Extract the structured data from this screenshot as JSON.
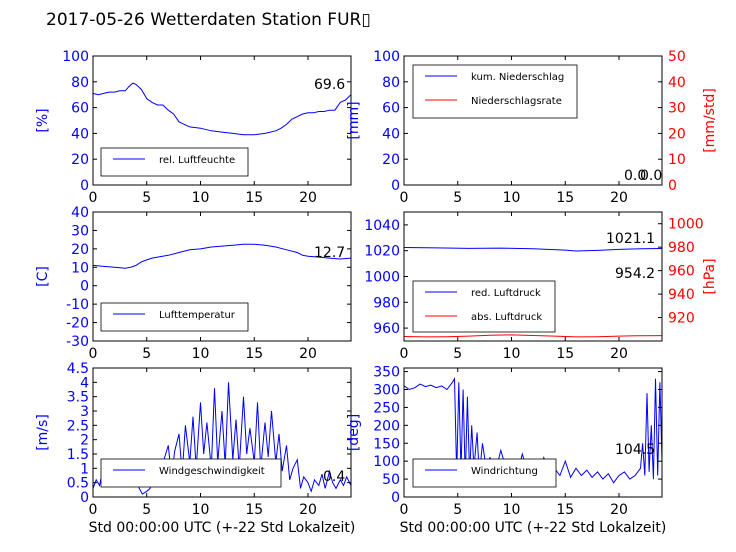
{
  "page": {
    "title": "2017-05-26 Wetterdaten Station FUR▯"
  },
  "colors": {
    "blue": "#0000ff",
    "red": "#ff0000",
    "axis": "#000000"
  },
  "chart_data": [
    {
      "type": "line",
      "id": "p1",
      "ylabel": "[%]",
      "xlim": [
        0,
        24
      ],
      "ylim": [
        0,
        100
      ],
      "xticks": [
        0,
        5,
        10,
        15,
        20
      ],
      "yticks": [
        0,
        20,
        40,
        60,
        80,
        100
      ],
      "annotation": "69.6",
      "legend": {
        "position": "lower-left",
        "entries": [
          "rel. Luftfeuchte"
        ]
      },
      "series": [
        {
          "name": "rel. Luftfeuchte",
          "color": "#0000ff",
          "x": [
            0,
            0.5,
            1,
            1.5,
            2,
            2.5,
            3,
            3.3,
            3.7,
            4,
            4.5,
            5,
            5.5,
            6,
            6.5,
            7,
            7.5,
            8,
            8.5,
            9,
            10,
            11,
            12,
            13,
            14,
            15,
            16,
            17,
            17.5,
            18,
            18.5,
            19,
            19.5,
            20,
            20.5,
            21,
            21.5,
            22,
            22.5,
            23,
            23.5,
            24
          ],
          "y": [
            71,
            70,
            71,
            72,
            72,
            73,
            73,
            76,
            79,
            78,
            74,
            67,
            64,
            62,
            62,
            58,
            55,
            49,
            47,
            45,
            44,
            42,
            41,
            40,
            39,
            39,
            40,
            42,
            44,
            47,
            51,
            53,
            55,
            56,
            56,
            57,
            57,
            58,
            58,
            64,
            66,
            70
          ]
        }
      ]
    },
    {
      "type": "line",
      "id": "p2",
      "ylabel": "[mm]",
      "ylabel2": "[mm/std]",
      "xlim": [
        0,
        24
      ],
      "ylim": [
        0,
        100
      ],
      "ylim2": [
        0,
        50
      ],
      "xticks": [
        0,
        5,
        10,
        15,
        20
      ],
      "yticks": [
        0,
        20,
        40,
        60,
        80,
        100
      ],
      "yticks2": [
        0,
        10,
        20,
        30,
        40,
        50
      ],
      "annotation": "0.0",
      "annotation2": "0.0",
      "legend": {
        "position": "upper-left",
        "entries": [
          "kum. Niederschlag",
          "Niederschlagsrate"
        ]
      },
      "series": [
        {
          "name": "kum. Niederschlag",
          "color": "#0000ff",
          "x": [
            0,
            24
          ],
          "y": [
            0,
            0
          ]
        },
        {
          "name": "Niederschlagsrate",
          "color": "#ff0000",
          "x": [
            0,
            24
          ],
          "y": [
            0,
            0
          ]
        }
      ]
    },
    {
      "type": "line",
      "id": "p3",
      "ylabel": "[C]",
      "xlim": [
        0,
        24
      ],
      "ylim": [
        -30,
        40
      ],
      "xticks": [
        0,
        5,
        10,
        15,
        20
      ],
      "yticks": [
        -30,
        -20,
        -10,
        0,
        10,
        20,
        30,
        40
      ],
      "annotation": "12.7",
      "legend": {
        "position": "lower-left",
        "entries": [
          "Lufttemperatur"
        ]
      },
      "series": [
        {
          "name": "Lufttemperatur",
          "color": "#0000ff",
          "x": [
            0,
            1,
            2,
            3,
            3.5,
            4,
            4.5,
            5,
            5.5,
            6,
            7,
            8,
            9,
            10,
            11,
            12,
            13,
            14,
            15,
            16,
            17,
            18,
            19,
            19.5,
            20,
            21,
            22,
            23,
            24
          ],
          "y": [
            11,
            10.5,
            10,
            9.5,
            10,
            11,
            13,
            14,
            15,
            15.5,
            16.5,
            18,
            19.5,
            20,
            21,
            21.5,
            22,
            22.5,
            22.5,
            22,
            21,
            19.5,
            18,
            16.5,
            16,
            15.5,
            15,
            14.5,
            15
          ]
        }
      ]
    },
    {
      "type": "line",
      "id": "p4",
      "ylabel2": "[hPa]",
      "xlim": [
        0,
        24
      ],
      "ylim": [
        950,
        1050
      ],
      "ylim2": [
        900,
        1010
      ],
      "xticks": [
        0,
        5,
        10,
        15,
        20
      ],
      "yticks": [
        960,
        980,
        1000,
        1020,
        1040
      ],
      "yticks2": [
        920,
        940,
        960,
        980,
        1000
      ],
      "annotation": "1021.1",
      "annotation2": "954.2",
      "legend": {
        "position": "lower-left",
        "entries": [
          "red. Luftdruck",
          "abs. Luftdruck"
        ]
      },
      "series": [
        {
          "name": "red. Luftdruck",
          "color": "#0000ff",
          "x": [
            0,
            3,
            6,
            9,
            12,
            15,
            16,
            18,
            20,
            22,
            24
          ],
          "y": [
            1022.5,
            1022.2,
            1021.8,
            1022,
            1021.5,
            1020.5,
            1019.8,
            1020.2,
            1021,
            1021.5,
            1021.7
          ]
        },
        {
          "name": "abs. Luftdruck",
          "color": "#ff0000",
          "x": [
            0,
            2,
            4,
            6,
            8,
            10,
            12,
            14,
            16,
            18,
            20,
            22,
            24
          ],
          "y": [
            953.5,
            953.2,
            953.3,
            953.8,
            954.5,
            954.7,
            954.3,
            953.8,
            953.2,
            953.3,
            953.8,
            954.1,
            954.2
          ]
        }
      ]
    },
    {
      "type": "line",
      "id": "p5",
      "ylabel": "[m/s]",
      "xlabel": "Std 00:00:00 UTC (+-22 Std Lokalzeit)",
      "xlim": [
        0,
        24
      ],
      "ylim": [
        0,
        4.5
      ],
      "xticks": [
        0,
        5,
        10,
        15,
        20
      ],
      "yticks": [
        0.0,
        0.5,
        1.0,
        1.5,
        2.0,
        2.5,
        3.0,
        3.5,
        4.0,
        4.5
      ],
      "annotation": "0.4",
      "legend": {
        "position": "lower-left",
        "entries": [
          "Windgeschwindigkeit"
        ]
      },
      "series": [
        {
          "name": "Windgeschwindigkeit",
          "color": "#0000ff",
          "x": [
            0,
            0.3,
            0.6,
            1,
            1.3,
            1.6,
            2,
            2.3,
            2.6,
            3,
            3.3,
            3.6,
            4,
            4.3,
            4.6,
            5,
            5.3,
            5.6,
            6,
            6.3,
            6.6,
            7,
            7.3,
            7.6,
            8,
            8.3,
            8.6,
            9,
            9.3,
            9.6,
            10,
            10.3,
            10.6,
            11,
            11.3,
            11.6,
            12,
            12.3,
            12.6,
            13,
            13.3,
            13.6,
            14,
            14.3,
            14.6,
            15,
            15.3,
            15.6,
            16,
            16.3,
            16.6,
            17,
            17.3,
            17.6,
            18,
            18.3,
            18.6,
            19,
            19.3,
            19.6,
            20,
            20.3,
            20.6,
            21,
            21.3,
            21.6,
            22,
            22.3,
            22.6,
            23,
            23.3,
            23.6,
            24
          ],
          "y": [
            0.3,
            0.6,
            0.4,
            1.1,
            1.0,
            1.2,
            1.1,
            1.2,
            1.0,
            1.1,
            1.2,
            1.0,
            0.9,
            0.3,
            0.1,
            0.2,
            0.3,
            0.6,
            1.1,
            0.5,
            1.3,
            1.8,
            0.7,
            1.6,
            2.2,
            0.8,
            2.5,
            1.2,
            2.8,
            1.0,
            3.3,
            1.5,
            2.6,
            1.0,
            3.8,
            1.2,
            3.0,
            1.1,
            4.0,
            1.3,
            2.7,
            1.0,
            3.5,
            1.5,
            2.4,
            1.2,
            3.3,
            1.0,
            2.6,
            1.4,
            3.0,
            1.2,
            2.2,
            0.9,
            1.8,
            0.6,
            1.0,
            1.3,
            0.3,
            0.7,
            0.5,
            0.2,
            0.6,
            0.4,
            0.8,
            0.3,
            0.9,
            0.5,
            0.3,
            0.6,
            0.4,
            0.7,
            0.4
          ]
        }
      ]
    },
    {
      "type": "line",
      "id": "p6",
      "ylabel": "[deg]",
      "xlabel": "Std 00:00:00 UTC (+-22 Std Lokalzeit)",
      "xlim": [
        0,
        24
      ],
      "ylim": [
        0,
        360
      ],
      "xticks": [
        0,
        5,
        10,
        15,
        20
      ],
      "yticks": [
        0,
        50,
        100,
        150,
        200,
        250,
        300,
        350
      ],
      "annotation": "104.5",
      "legend": {
        "position": "lower-left",
        "entries": [
          "Windrichtung"
        ]
      },
      "series": [
        {
          "name": "Windrichtung",
          "color": "#0000ff",
          "x": [
            0,
            0.5,
            1,
            1.5,
            2,
            2.5,
            3,
            3.5,
            4,
            4.5,
            4.7,
            4.9,
            5.1,
            5.3,
            5.5,
            5.7,
            5.9,
            6.1,
            6.3,
            6.5,
            6.8,
            7,
            7.3,
            7.6,
            8,
            8.5,
            9,
            9.5,
            10,
            10.5,
            11,
            11.5,
            12,
            12.5,
            13,
            13.5,
            14,
            14.5,
            15,
            15.5,
            16,
            16.5,
            17,
            17.5,
            18,
            18.5,
            19,
            19.5,
            20,
            20.5,
            21,
            21.5,
            22,
            22.2,
            22.4,
            22.6,
            22.8,
            23,
            23.2,
            23.4,
            23.6,
            23.8,
            24
          ],
          "y": [
            310,
            300,
            305,
            315,
            308,
            312,
            305,
            310,
            300,
            320,
            330,
            60,
            320,
            70,
            300,
            50,
            280,
            60,
            200,
            80,
            180,
            60,
            150,
            90,
            110,
            70,
            130,
            80,
            100,
            60,
            120,
            70,
            90,
            60,
            110,
            70,
            80,
            60,
            100,
            55,
            80,
            60,
            75,
            55,
            70,
            50,
            65,
            40,
            60,
            70,
            50,
            60,
            80,
            150,
            60,
            290,
            70,
            200,
            50,
            330,
            60,
            320,
            100
          ]
        }
      ]
    }
  ]
}
